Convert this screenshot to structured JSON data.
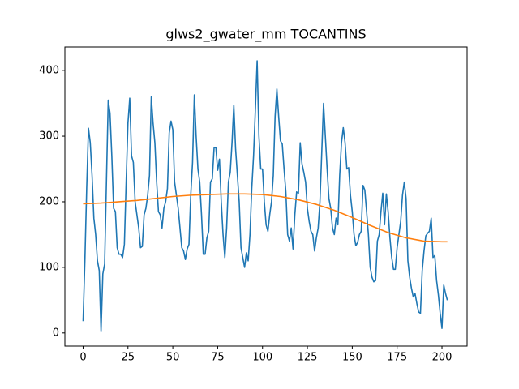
{
  "chart_data": {
    "type": "line",
    "title": "glws2_gwater_mm TOCANTINS",
    "series": [
      {
        "color": "#1f77b4",
        "x": [
          0,
          1,
          2,
          3,
          4,
          5,
          6,
          7,
          8,
          9,
          10,
          11,
          12,
          13,
          14,
          15,
          16,
          17,
          18,
          19,
          20,
          21,
          22,
          23,
          24,
          25,
          26,
          27,
          28,
          29,
          30,
          31,
          32,
          33,
          34,
          35,
          36,
          37,
          38,
          39,
          40,
          41,
          42,
          43,
          44,
          45,
          46,
          47,
          48,
          49,
          50,
          51,
          52,
          53,
          54,
          55,
          56,
          57,
          58,
          59,
          60,
          61,
          62,
          63,
          64,
          65,
          66,
          67,
          68,
          69,
          70,
          71,
          72,
          73,
          74,
          75,
          76,
          77,
          78,
          79,
          80,
          81,
          82,
          83,
          84,
          85,
          86,
          87,
          88,
          89,
          90,
          91,
          92,
          93,
          94,
          95,
          96,
          97,
          98,
          99,
          100,
          101,
          102,
          103,
          104,
          105,
          106,
          107,
          108,
          109,
          110,
          111,
          112,
          113,
          114,
          115,
          116,
          117,
          118,
          119,
          120,
          121,
          122,
          123,
          124,
          125,
          126,
          127,
          128,
          129,
          130,
          131,
          132,
          133,
          134,
          135,
          136,
          137,
          138,
          139,
          140,
          141,
          142,
          143,
          144,
          145,
          146,
          147,
          148,
          149,
          150,
          151,
          152,
          153,
          154,
          155,
          156,
          157,
          158,
          159,
          160,
          161,
          162,
          163,
          164,
          165,
          166,
          167,
          168,
          169,
          170,
          171,
          172,
          173,
          174,
          175,
          176,
          177,
          178,
          179,
          180,
          181,
          182,
          183,
          184,
          185,
          186,
          187,
          188,
          189,
          190,
          191,
          192,
          193,
          194,
          195,
          196,
          197,
          198,
          199,
          200,
          201,
          202,
          203
        ],
        "values": [
          18,
          110,
          220,
          312,
          290,
          240,
          175,
          150,
          110,
          95,
          2,
          90,
          105,
          230,
          355,
          335,
          270,
          190,
          185,
          130,
          120,
          120,
          115,
          135,
          230,
          320,
          358,
          270,
          260,
          200,
          180,
          160,
          130,
          132,
          180,
          190,
          210,
          240,
          360,
          320,
          290,
          230,
          185,
          180,
          160,
          190,
          200,
          220,
          305,
          323,
          310,
          230,
          210,
          190,
          160,
          130,
          125,
          112,
          128,
          135,
          210,
          260,
          363,
          300,
          250,
          230,
          180,
          120,
          120,
          145,
          155,
          230,
          235,
          282,
          283,
          248,
          265,
          200,
          150,
          115,
          160,
          230,
          245,
          290,
          347,
          280,
          240,
          200,
          130,
          115,
          100,
          122,
          110,
          150,
          220,
          270,
          340,
          415,
          300,
          250,
          250,
          200,
          165,
          155,
          180,
          200,
          240,
          330,
          372,
          330,
          293,
          288,
          250,
          215,
          150,
          140,
          160,
          128,
          180,
          215,
          213,
          290,
          258,
          245,
          230,
          190,
          170,
          155,
          150,
          125,
          145,
          160,
          200,
          275,
          350,
          300,
          250,
          205,
          190,
          160,
          150,
          175,
          165,
          240,
          290,
          313,
          290,
          250,
          252,
          210,
          185,
          150,
          133,
          138,
          150,
          155,
          225,
          218,
          185,
          150,
          100,
          85,
          78,
          80,
          140,
          150,
          185,
          213,
          165,
          212,
          185,
          145,
          115,
          97,
          97,
          130,
          150,
          170,
          210,
          230,
          205,
          110,
          85,
          68,
          55,
          60,
          45,
          32,
          30,
          95,
          125,
          148,
          152,
          155,
          175,
          115,
          118,
          80,
          58,
          30,
          7,
          73,
          60,
          50
        ]
      },
      {
        "color": "#ff7f0e",
        "x": [
          0,
          10,
          20,
          30,
          40,
          50,
          60,
          70,
          80,
          90,
          100,
          110,
          120,
          130,
          140,
          150,
          160,
          170,
          180,
          190,
          200,
          203
        ],
        "values": [
          197,
          198,
          200,
          202,
          205,
          208,
          210,
          211,
          212,
          212,
          211,
          208,
          203,
          196,
          187,
          176,
          164,
          153,
          145,
          140,
          139,
          139
        ]
      }
    ],
    "xlim": [
      -10.15,
      214
    ],
    "xticks": [
      0,
      25,
      50,
      75,
      100,
      125,
      150,
      175,
      200
    ],
    "ylim": [
      -20,
      436
    ],
    "yticks": [
      0,
      100,
      200,
      300,
      400
    ]
  }
}
